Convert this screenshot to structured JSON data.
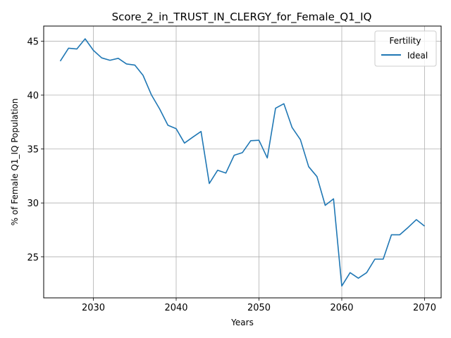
{
  "chart_data": {
    "type": "line",
    "title": "Score_2_in_TRUST_IN_CLERGY_for_Female_Q1_IQ",
    "xlabel": "Years",
    "ylabel": "% of Female Q1_IQ Population",
    "xlim": [
      2024,
      2072
    ],
    "ylim": [
      21.2,
      46.4
    ],
    "xticks": [
      2030,
      2040,
      2050,
      2060,
      2070
    ],
    "yticks": [
      25,
      30,
      35,
      40,
      45
    ],
    "grid": true,
    "legend": {
      "title": "Fertility",
      "placement": "top-right"
    },
    "series": [
      {
        "name": "Ideal",
        "color": "#1f77b4",
        "x": [
          2026,
          2027,
          2028,
          2029,
          2030,
          2031,
          2032,
          2033,
          2034,
          2035,
          2036,
          2037,
          2038,
          2039,
          2040,
          2041,
          2042,
          2043,
          2044,
          2045,
          2046,
          2047,
          2048,
          2049,
          2050,
          2051,
          2052,
          2053,
          2054,
          2055,
          2056,
          2057,
          2058,
          2059,
          2060,
          2061,
          2062,
          2063,
          2064,
          2065,
          2066,
          2067,
          2068,
          2069,
          2070
        ],
        "y": [
          43.15,
          44.35,
          44.27,
          45.22,
          44.15,
          43.45,
          43.23,
          43.41,
          42.89,
          42.78,
          41.83,
          40.03,
          38.72,
          37.2,
          36.88,
          35.55,
          36.1,
          36.63,
          31.8,
          33.03,
          32.77,
          34.42,
          34.67,
          35.77,
          35.81,
          34.17,
          38.78,
          39.2,
          36.99,
          35.87,
          33.36,
          32.44,
          29.78,
          30.38,
          22.3,
          23.54,
          23.02,
          23.54,
          24.79,
          24.79,
          27.05,
          27.05,
          27.72,
          28.45,
          27.85
        ]
      }
    ]
  }
}
